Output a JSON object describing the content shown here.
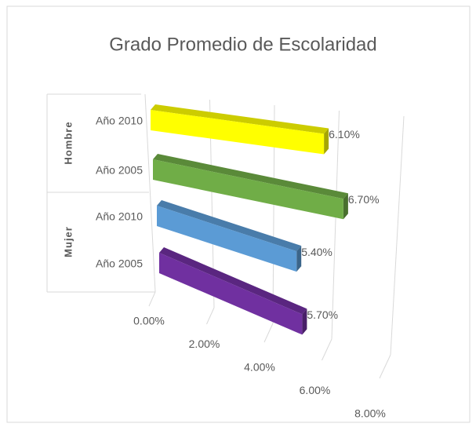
{
  "chart_data": {
    "type": "bar3d",
    "title": "Grado Promedio de Escolaridad",
    "groups": [
      "Hombre",
      "Mujer"
    ],
    "categories": [
      "Año 2010",
      "Año 2005",
      "Año 2010",
      "Año 2005"
    ],
    "values": [
      6.1,
      6.7,
      5.4,
      5.7
    ],
    "value_labels": [
      "6.10%",
      "6.70%",
      "5.40%",
      "5.70%"
    ],
    "colors": [
      "#ffff00",
      "#70ad47",
      "#5b9bd5",
      "#7030a0"
    ],
    "xlim": [
      0,
      8
    ],
    "xticks": [
      {
        "value": 0,
        "label": "0.00%"
      },
      {
        "value": 2,
        "label": "2.00%"
      },
      {
        "value": 4,
        "label": "4.00%"
      },
      {
        "value": 6,
        "label": "6.00%"
      },
      {
        "value": 8,
        "label": "8.00%"
      }
    ],
    "grid": true
  }
}
